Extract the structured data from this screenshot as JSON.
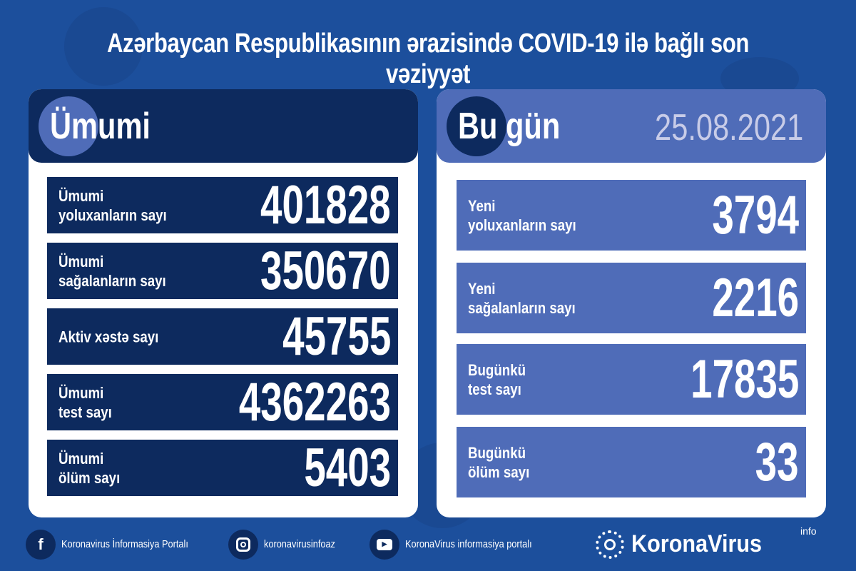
{
  "title": "Azərbaycan Respublikasının ərazisində COVID-19 ilə bağlı son vəziyyət",
  "total": {
    "heading": "Ümumi",
    "rows": [
      {
        "label": "Ümumi\nyoluxanların sayı",
        "value": "401828"
      },
      {
        "label": "Ümumi\nsağalanların sayı",
        "value": "350670"
      },
      {
        "label": "Aktiv xəstə sayı",
        "value": "45755"
      },
      {
        "label": "Ümumi\ntest sayı",
        "value": "4362263"
      },
      {
        "label": "Ümumi\nölüm sayı",
        "value": "5403"
      }
    ]
  },
  "today": {
    "heading": "Bu gün",
    "date": "25.08.2021",
    "rows": [
      {
        "label": "Yeni\nyoluxanların sayı",
        "value": "3794"
      },
      {
        "label": "Yeni\nsağalanların sayı",
        "value": "2216"
      },
      {
        "label": "Bugünkü\ntest sayı",
        "value": "17835"
      },
      {
        "label": "Bugünkü\nölüm sayı",
        "value": "33"
      }
    ]
  },
  "footer": {
    "facebook": {
      "icon": "facebook-icon",
      "text": "Koronavirus İnformasiya Portalı"
    },
    "instagram": {
      "icon": "instagram-icon",
      "text": "koronavirusinfoaz"
    },
    "youtube": {
      "icon": "youtube-icon",
      "text": "KoronaVirus informasiya portalı"
    },
    "logo": {
      "name": "KoronaVirus",
      "sup": "info"
    }
  },
  "colors": {
    "background": "#1c4f9c",
    "navy": "#0d2a5e",
    "today_blue": "#4f6cb8",
    "panel": "#ffffff"
  }
}
